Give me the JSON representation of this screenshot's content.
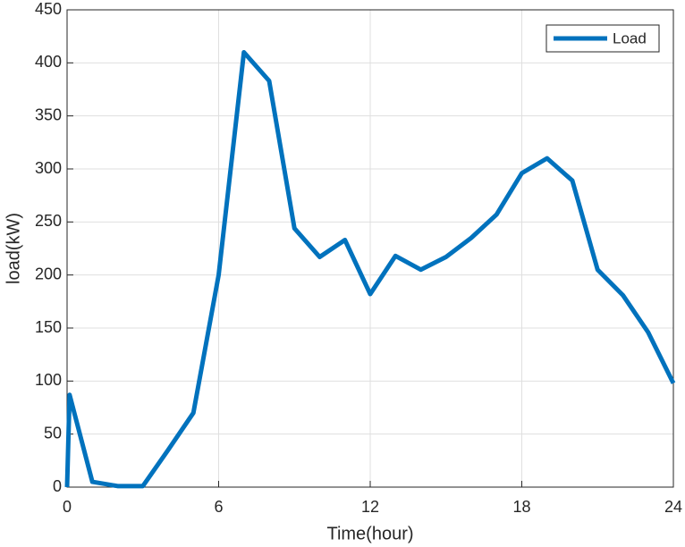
{
  "chart_data": {
    "type": "line",
    "xlabel": "Time(hour)",
    "ylabel": "load(kW)",
    "x": [
      0,
      0.1,
      1,
      2,
      3,
      4,
      5,
      6,
      7,
      8,
      9,
      10,
      11,
      12,
      13,
      14,
      15,
      16,
      17,
      18,
      19,
      20,
      21,
      22,
      23,
      24
    ],
    "series": [
      {
        "name": "Load",
        "color": "#0072bd",
        "values": [
          0,
          87,
          5,
          1,
          1,
          35,
          70,
          200,
          410,
          383,
          244,
          217,
          233,
          182,
          218,
          205,
          217,
          235,
          257,
          296,
          310,
          289,
          205,
          181,
          146,
          98
        ]
      }
    ],
    "xlim": [
      0,
      24
    ],
    "xticks": [
      0,
      6,
      12,
      18,
      24
    ],
    "ylim": [
      0,
      450
    ],
    "yticks": [
      0,
      50,
      100,
      150,
      200,
      250,
      300,
      350,
      400,
      450
    ],
    "grid": true,
    "legend": "northeast"
  }
}
